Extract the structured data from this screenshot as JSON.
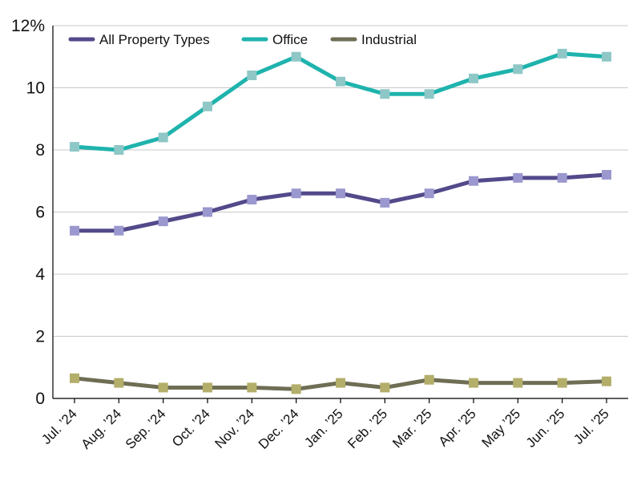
{
  "chart_data": {
    "type": "line",
    "title": "",
    "xlabel": "",
    "ylabel": "",
    "categories": [
      "Jul. ’24",
      "Aug. ’24",
      "Sep. ’24",
      "Oct. ’24",
      "Nov. ’24",
      "Dec. ’24",
      "Jan. ’25",
      "Feb. ’25",
      "Mar. ’25",
      "Apr. ’25",
      "May ’25",
      "Jun. ’25",
      "Jul. ’25"
    ],
    "ylim": [
      0,
      12
    ],
    "yticks": [
      {
        "value": 0,
        "label": "0"
      },
      {
        "value": 2,
        "label": "2"
      },
      {
        "value": 4,
        "label": "4"
      },
      {
        "value": 6,
        "label": "6"
      },
      {
        "value": 8,
        "label": "8"
      },
      {
        "value": 10,
        "label": "10"
      },
      {
        "value": 12,
        "label": "12%"
      }
    ],
    "grid": true,
    "legend_position": "top-left",
    "series": [
      {
        "name": "All Property Types",
        "line_color": "#524a8a",
        "marker_color": "#9b98cf",
        "values": [
          5.4,
          5.4,
          5.7,
          6.0,
          6.4,
          6.6,
          6.6,
          6.3,
          6.6,
          7.0,
          7.1,
          7.1,
          7.2
        ]
      },
      {
        "name": "Office",
        "line_color": "#1fb3ad",
        "marker_color": "#8fc7c7",
        "values": [
          8.1,
          8.0,
          8.4,
          9.4,
          10.4,
          11.0,
          10.2,
          9.8,
          9.8,
          10.3,
          10.6,
          11.1,
          11.0
        ]
      },
      {
        "name": "Industrial",
        "line_color": "#6f6e55",
        "marker_color": "#b3ae6a",
        "values": [
          0.65,
          0.5,
          0.35,
          0.35,
          0.35,
          0.3,
          0.5,
          0.35,
          0.6,
          0.5,
          0.5,
          0.5,
          0.55
        ]
      }
    ]
  }
}
